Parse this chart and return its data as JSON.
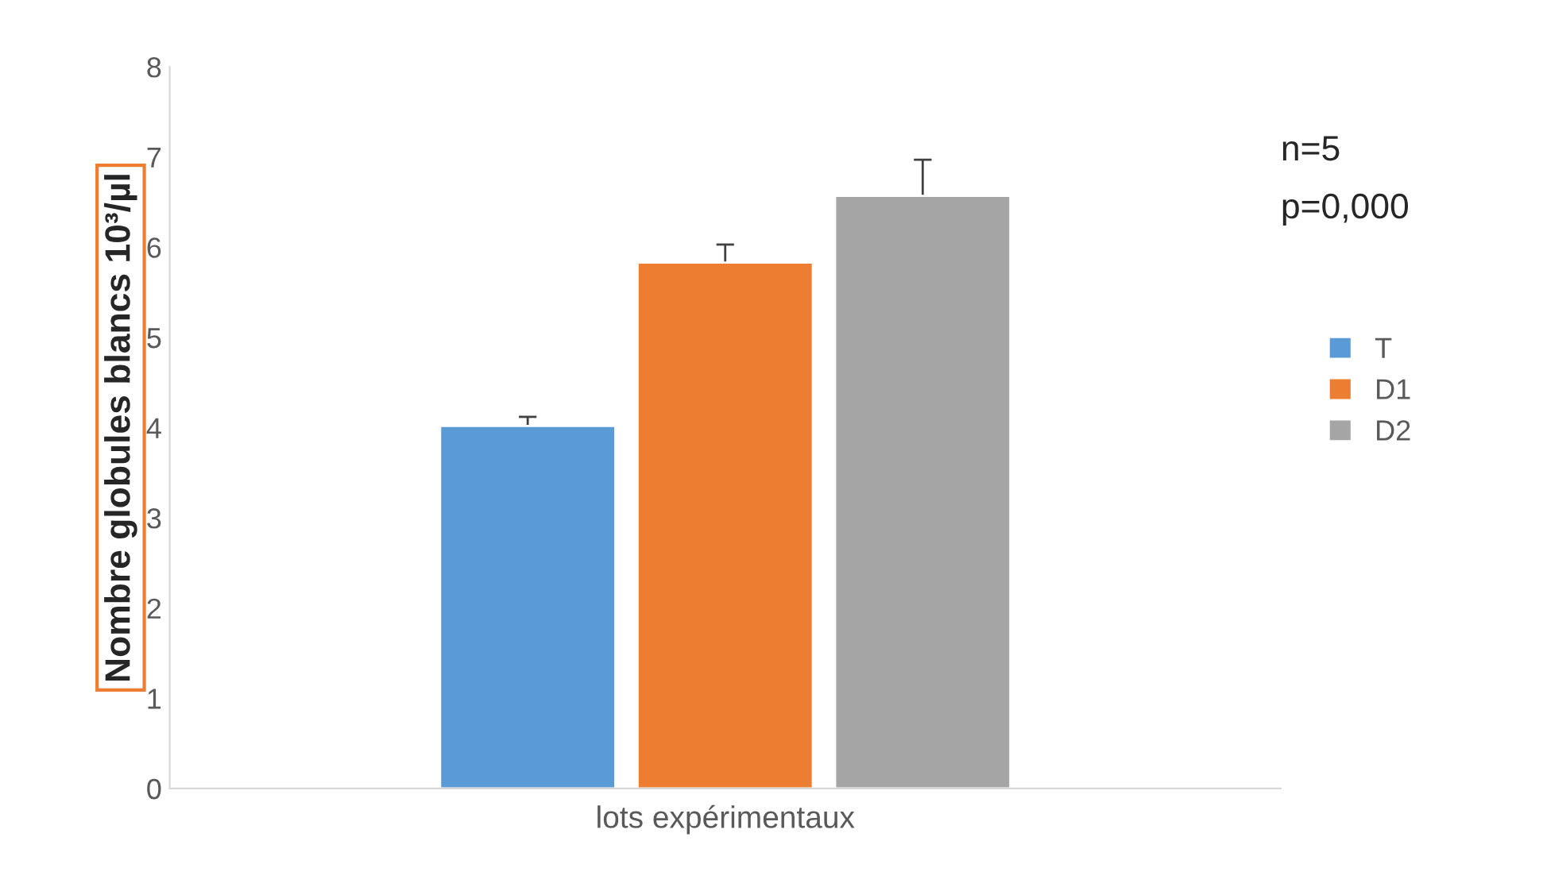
{
  "chart_data": {
    "type": "bar",
    "xlabel": "lots expérimentaux",
    "ylabel": "Nombre globules blancs 10³/µl",
    "categories": [
      null
    ],
    "series": [
      {
        "name": "T",
        "color": "#5b9bd5",
        "values": [
          4.02
        ],
        "errors": [
          0.1
        ]
      },
      {
        "name": "D1",
        "color": "#ed7d31",
        "values": [
          5.83
        ],
        "errors": [
          0.2
        ]
      },
      {
        "name": "D2",
        "color": "#a5a5a5",
        "values": [
          6.57
        ],
        "errors": [
          0.4
        ]
      }
    ],
    "ylim": [
      0,
      8
    ],
    "yticks": [
      0,
      1,
      2,
      3,
      4,
      5,
      6,
      7,
      8
    ],
    "grid": false,
    "legend": "right",
    "annotations": [
      "n=5",
      "p=0,000"
    ]
  }
}
